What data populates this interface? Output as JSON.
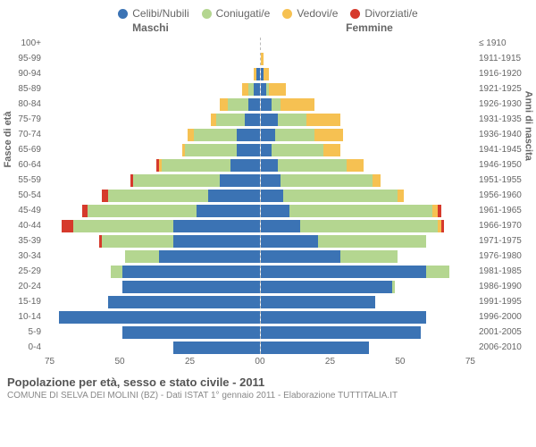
{
  "legend": [
    {
      "label": "Celibi/Nubili",
      "color": "#3b73b4"
    },
    {
      "label": "Coniugati/e",
      "color": "#b4d690"
    },
    {
      "label": "Vedovi/e",
      "color": "#f6c152"
    },
    {
      "label": "Divorziati/e",
      "color": "#d63a2c"
    }
  ],
  "header_male": "Maschi",
  "header_female": "Femmine",
  "ylabel_left": "Fasce di età",
  "ylabel_right": "Anni di nascita",
  "title": "Popolazione per età, sesso e stato civile - 2011",
  "subtitle": "COMUNE DI SELVA DEI MOLINI (BZ) - Dati ISTAT 1° gennaio 2011 - Elaborazione TUTTITALIA.IT",
  "x_max": 75,
  "x_ticks_male": [
    "75",
    "50",
    "25",
    "0"
  ],
  "x_ticks_female": [
    "0",
    "25",
    "50",
    "75"
  ],
  "gridlines": [
    25,
    50,
    75
  ],
  "colors": {
    "single": "#3b73b4",
    "married": "#b4d690",
    "widowed": "#f6c152",
    "divorced": "#d63a2c"
  },
  "rows": [
    {
      "age": "100+",
      "birth": "≤ 1910",
      "m": {
        "s": 0,
        "m": 0,
        "w": 0,
        "d": 0
      },
      "f": {
        "s": 0,
        "m": 0,
        "w": 0,
        "d": 0
      }
    },
    {
      "age": "95-99",
      "birth": "1911-1915",
      "m": {
        "s": 0,
        "m": 0,
        "w": 0,
        "d": 0
      },
      "f": {
        "s": 0,
        "m": 0,
        "w": 1,
        "d": 0
      }
    },
    {
      "age": "90-94",
      "birth": "1916-1920",
      "m": {
        "s": 1,
        "m": 0,
        "w": 1,
        "d": 0
      },
      "f": {
        "s": 1,
        "m": 0,
        "w": 2,
        "d": 0
      }
    },
    {
      "age": "85-89",
      "birth": "1921-1925",
      "m": {
        "s": 2,
        "m": 2,
        "w": 2,
        "d": 0
      },
      "f": {
        "s": 2,
        "m": 1,
        "w": 6,
        "d": 0
      }
    },
    {
      "age": "80-84",
      "birth": "1926-1930",
      "m": {
        "s": 4,
        "m": 7,
        "w": 3,
        "d": 0
      },
      "f": {
        "s": 4,
        "m": 3,
        "w": 12,
        "d": 0
      }
    },
    {
      "age": "75-79",
      "birth": "1931-1935",
      "m": {
        "s": 5,
        "m": 10,
        "w": 2,
        "d": 0
      },
      "f": {
        "s": 6,
        "m": 10,
        "w": 12,
        "d": 0
      }
    },
    {
      "age": "70-74",
      "birth": "1936-1940",
      "m": {
        "s": 8,
        "m": 15,
        "w": 2,
        "d": 0
      },
      "f": {
        "s": 5,
        "m": 14,
        "w": 10,
        "d": 0
      }
    },
    {
      "age": "65-69",
      "birth": "1941-1945",
      "m": {
        "s": 8,
        "m": 18,
        "w": 1,
        "d": 0
      },
      "f": {
        "s": 4,
        "m": 18,
        "w": 6,
        "d": 0
      }
    },
    {
      "age": "60-64",
      "birth": "1946-1950",
      "m": {
        "s": 10,
        "m": 24,
        "w": 1,
        "d": 1
      },
      "f": {
        "s": 6,
        "m": 24,
        "w": 6,
        "d": 0
      }
    },
    {
      "age": "55-59",
      "birth": "1951-1955",
      "m": {
        "s": 14,
        "m": 30,
        "w": 0,
        "d": 1
      },
      "f": {
        "s": 7,
        "m": 32,
        "w": 3,
        "d": 0
      }
    },
    {
      "age": "50-54",
      "birth": "1956-1960",
      "m": {
        "s": 18,
        "m": 35,
        "w": 0,
        "d": 2
      },
      "f": {
        "s": 8,
        "m": 40,
        "w": 2,
        "d": 0
      }
    },
    {
      "age": "45-49",
      "birth": "1961-1965",
      "m": {
        "s": 22,
        "m": 38,
        "w": 0,
        "d": 2
      },
      "f": {
        "s": 10,
        "m": 50,
        "w": 2,
        "d": 1
      }
    },
    {
      "age": "40-44",
      "birth": "1966-1970",
      "m": {
        "s": 30,
        "m": 35,
        "w": 0,
        "d": 4
      },
      "f": {
        "s": 14,
        "m": 48,
        "w": 1,
        "d": 1
      }
    },
    {
      "age": "35-39",
      "birth": "1971-1975",
      "m": {
        "s": 30,
        "m": 25,
        "w": 0,
        "d": 1
      },
      "f": {
        "s": 20,
        "m": 38,
        "w": 0,
        "d": 0
      }
    },
    {
      "age": "30-34",
      "birth": "1976-1980",
      "m": {
        "s": 35,
        "m": 12,
        "w": 0,
        "d": 0
      },
      "f": {
        "s": 28,
        "m": 20,
        "w": 0,
        "d": 0
      }
    },
    {
      "age": "25-29",
      "birth": "1981-1985",
      "m": {
        "s": 48,
        "m": 4,
        "w": 0,
        "d": 0
      },
      "f": {
        "s": 58,
        "m": 8,
        "w": 0,
        "d": 0
      }
    },
    {
      "age": "20-24",
      "birth": "1986-1990",
      "m": {
        "s": 48,
        "m": 0,
        "w": 0,
        "d": 0
      },
      "f": {
        "s": 46,
        "m": 1,
        "w": 0,
        "d": 0
      }
    },
    {
      "age": "15-19",
      "birth": "1991-1995",
      "m": {
        "s": 53,
        "m": 0,
        "w": 0,
        "d": 0
      },
      "f": {
        "s": 40,
        "m": 0,
        "w": 0,
        "d": 0
      }
    },
    {
      "age": "10-14",
      "birth": "1996-2000",
      "m": {
        "s": 70,
        "m": 0,
        "w": 0,
        "d": 0
      },
      "f": {
        "s": 58,
        "m": 0,
        "w": 0,
        "d": 0
      }
    },
    {
      "age": "5-9",
      "birth": "2001-2005",
      "m": {
        "s": 48,
        "m": 0,
        "w": 0,
        "d": 0
      },
      "f": {
        "s": 56,
        "m": 0,
        "w": 0,
        "d": 0
      }
    },
    {
      "age": "0-4",
      "birth": "2006-2010",
      "m": {
        "s": 30,
        "m": 0,
        "w": 0,
        "d": 0
      },
      "f": {
        "s": 38,
        "m": 0,
        "w": 0,
        "d": 0
      }
    }
  ]
}
